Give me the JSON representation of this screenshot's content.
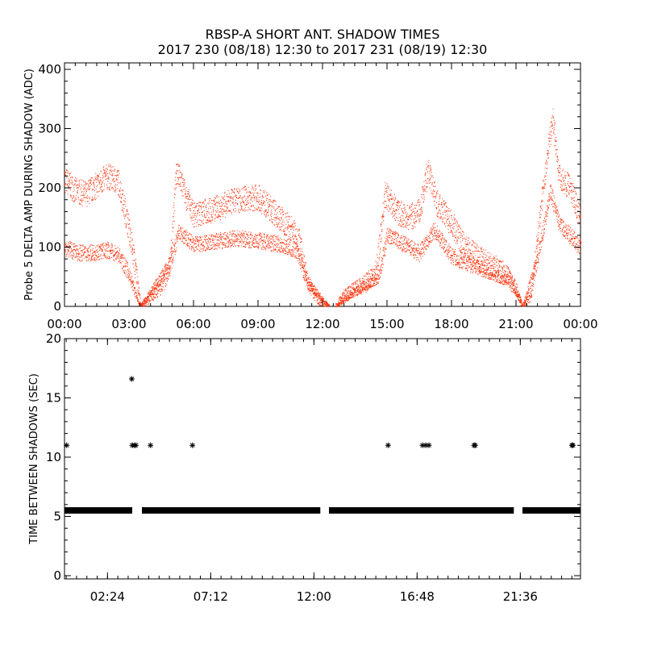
{
  "figure": {
    "title_line1": "RBSP-A SHORT ANT. SHADOW TIMES",
    "title_line2": "2017 230 (08/18) 12:30 to 2017 231 (08/19) 12:30"
  },
  "colors": {
    "shadow_amp_points": "#ff2a00",
    "shadow_interval_points": "#000000"
  },
  "chart_data": [
    {
      "type": "scatter",
      "ylabel": "Probe 5 DELTA AMP DURING SHADOW (ADC)",
      "xlabel": "",
      "xlim_hours": [
        0,
        24
      ],
      "ylim": [
        0,
        400
      ],
      "x_ticks": [
        "00:00",
        "03:00",
        "06:00",
        "09:00",
        "12:00",
        "15:00",
        "18:00",
        "21:00",
        "00:00"
      ],
      "y_ticks": [
        "0",
        "100",
        "200",
        "300",
        "400"
      ],
      "grid": false,
      "series": [
        {
          "color": "#ff2a00",
          "upper_band": [
            [
              0.0,
              215
            ],
            [
              0.5,
              195
            ],
            [
              1.0,
              190
            ],
            [
              1.5,
              205
            ],
            [
              2.0,
              220
            ],
            [
              2.5,
              210
            ],
            [
              3.0,
              130
            ],
            [
              3.4,
              40
            ],
            [
              3.55,
              0
            ],
            [
              3.9,
              12
            ],
            [
              4.5,
              35
            ],
            [
              4.9,
              70
            ],
            [
              5.2,
              230
            ],
            [
              5.6,
              190
            ],
            [
              6.0,
              155
            ],
            [
              7.0,
              165
            ],
            [
              8.0,
              180
            ],
            [
              9.0,
              185
            ],
            [
              10.0,
              150
            ],
            [
              10.6,
              130
            ],
            [
              10.9,
              110
            ],
            [
              11.3,
              40
            ],
            [
              11.8,
              10
            ],
            [
              12.3,
              0
            ]
          ],
          "lower_band": [
            [
              0.0,
              100
            ],
            [
              0.5,
              92
            ],
            [
              1.0,
              90
            ],
            [
              2.0,
              95
            ],
            [
              2.5,
              88
            ],
            [
              3.0,
              55
            ],
            [
              3.5,
              0
            ],
            [
              4.9,
              70
            ],
            [
              5.3,
              125
            ],
            [
              6.0,
              105
            ],
            [
              7.0,
              110
            ],
            [
              8.0,
              115
            ],
            [
              9.0,
              112
            ],
            [
              10.0,
              105
            ],
            [
              10.8,
              95
            ],
            [
              11.3,
              40
            ],
            [
              12.3,
              0
            ]
          ],
          "upper_band_2": [
            [
              12.6,
              0
            ],
            [
              13.0,
              20
            ],
            [
              14.0,
              40
            ],
            [
              14.5,
              60
            ],
            [
              14.9,
              190
            ],
            [
              15.5,
              160
            ],
            [
              16.0,
              150
            ],
            [
              16.5,
              160
            ],
            [
              16.9,
              230
            ],
            [
              17.3,
              175
            ],
            [
              18.0,
              140
            ],
            [
              18.6,
              100
            ],
            [
              19.5,
              75
            ],
            [
              20.5,
              55
            ],
            [
              21.0,
              30
            ],
            [
              21.3,
              0
            ],
            [
              21.7,
              20
            ],
            [
              22.0,
              120
            ],
            [
              22.5,
              270
            ],
            [
              22.7,
              320
            ],
            [
              23.0,
              220
            ],
            [
              23.5,
              200
            ],
            [
              24.0,
              150
            ]
          ],
          "lower_band_2": [
            [
              12.6,
              0
            ],
            [
              13.5,
              25
            ],
            [
              14.6,
              50
            ],
            [
              15.0,
              120
            ],
            [
              15.8,
              105
            ],
            [
              16.5,
              90
            ],
            [
              17.2,
              130
            ],
            [
              18.0,
              85
            ],
            [
              19.0,
              70
            ],
            [
              20.0,
              55
            ],
            [
              20.8,
              40
            ],
            [
              21.3,
              0
            ],
            [
              22.0,
              80
            ],
            [
              22.6,
              195
            ],
            [
              23.0,
              140
            ],
            [
              24.0,
              100
            ]
          ]
        }
      ]
    },
    {
      "type": "scatter",
      "ylabel": "TIME BETWEEN SHADOWS (SEC)",
      "xlabel": "",
      "xlim_hours": [
        0.4,
        24.4
      ],
      "ylim": [
        0,
        20
      ],
      "x_ticks": [
        "02:24",
        "07:12",
        "12:00",
        "16:48",
        "21:36"
      ],
      "y_ticks": [
        "0",
        "5",
        "10",
        "15",
        "20"
      ],
      "grid": false,
      "series": [
        {
          "color": "#000000",
          "baseline_value": 5.5,
          "baseline_segments_hours": [
            [
              0.4,
              3.55
            ],
            [
              4.0,
              12.3
            ],
            [
              12.7,
              21.3
            ],
            [
              21.7,
              24.4
            ]
          ],
          "outliers": [
            [
              0.5,
              11
            ],
            [
              3.53,
              16.6
            ],
            [
              3.55,
              11
            ],
            [
              3.65,
              11
            ],
            [
              3.72,
              11
            ],
            [
              4.4,
              11
            ],
            [
              6.35,
              11
            ],
            [
              15.45,
              11
            ],
            [
              17.05,
              11
            ],
            [
              17.2,
              11
            ],
            [
              17.35,
              11
            ],
            [
              19.45,
              11
            ],
            [
              19.5,
              11
            ],
            [
              24.0,
              11
            ],
            [
              24.05,
              11
            ]
          ]
        }
      ]
    }
  ]
}
